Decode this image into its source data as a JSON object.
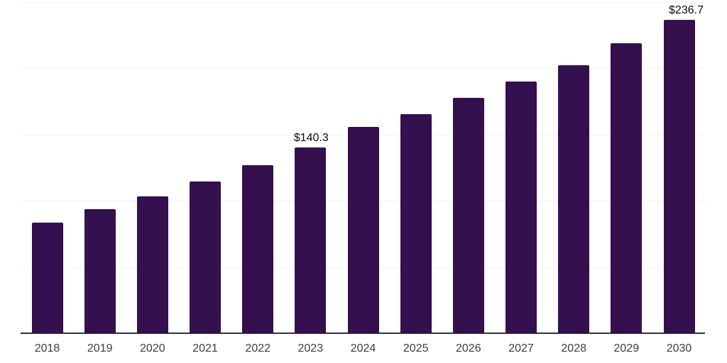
{
  "chart_data": {
    "type": "bar",
    "title": "",
    "categories": [
      "2018",
      "2019",
      "2020",
      "2021",
      "2022",
      "2023",
      "2024",
      "2025",
      "2026",
      "2027",
      "2028",
      "2029",
      "2030"
    ],
    "values": [
      83.5,
      93.7,
      103.5,
      114.6,
      126.9,
      140.3,
      155.7,
      165.6,
      177.8,
      190.0,
      202.2,
      218.8,
      236.7
    ],
    "data_labels": {
      "2023": "$140.3",
      "2030": "$236.7"
    },
    "xlabel": "",
    "ylabel": "",
    "ylim": [
      0,
      250
    ],
    "gridline_step": 50,
    "grid": true,
    "legend_position": "none",
    "colors": {
      "bar": "#34104e",
      "axis_line": "#323238",
      "gridline": "#f1f1f4",
      "tick_label": "#3d3d3d",
      "data_label": "#0d0d0d"
    }
  }
}
